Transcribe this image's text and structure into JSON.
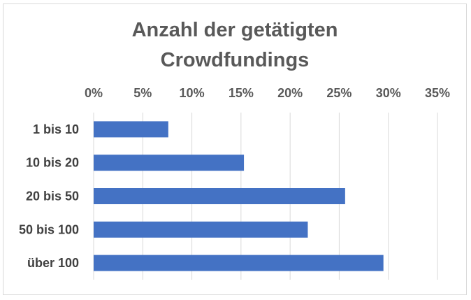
{
  "chart_data": {
    "type": "bar",
    "orientation": "horizontal",
    "title_lines": [
      "Anzahl der getätigten",
      "Crowdfundings"
    ],
    "categories": [
      "1 bis 10",
      "10 bis 20",
      "20 bis 50",
      "50 bis 100",
      "über 100"
    ],
    "values": [
      7.6,
      15.3,
      25.6,
      21.8,
      29.5
    ],
    "value_unit": "%",
    "xlim": [
      0,
      35
    ],
    "x_ticks": [
      "0%",
      "5%",
      "10%",
      "15%",
      "20%",
      "25%",
      "30%",
      "35%"
    ],
    "x_axis_position": "top",
    "grid": true,
    "bar_color": "#4472c4",
    "grid_color": "#d9d9d9"
  }
}
